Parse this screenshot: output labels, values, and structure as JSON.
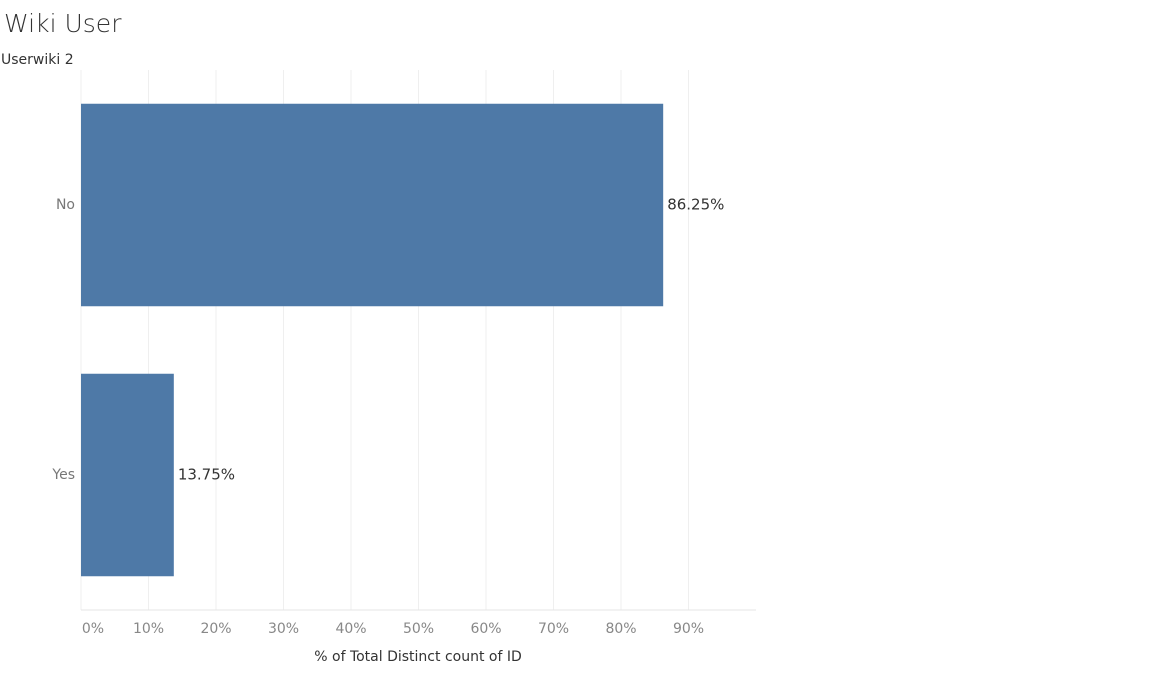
{
  "chart_data": {
    "type": "bar",
    "orientation": "horizontal",
    "title": "Wiki User",
    "row_header": "Userwiki 2",
    "categories": [
      "No",
      "Yes"
    ],
    "values": [
      86.25,
      13.75
    ],
    "value_labels": [
      "86.25%",
      "13.75%"
    ],
    "color": "#4e79a7",
    "x_label": "% of Total Distinct count of ID",
    "xlim": [
      0,
      100
    ],
    "xticks": [
      {
        "value": 0,
        "label": "0%"
      },
      {
        "value": 10,
        "label": "10%"
      },
      {
        "value": 20,
        "label": "20%"
      },
      {
        "value": 30,
        "label": "30%"
      },
      {
        "value": 40,
        "label": "40%"
      },
      {
        "value": 50,
        "label": "50%"
      },
      {
        "value": 60,
        "label": "60%"
      },
      {
        "value": 70,
        "label": "70%"
      },
      {
        "value": 80,
        "label": "80%"
      },
      {
        "value": 90,
        "label": "90%"
      }
    ],
    "grid": true
  }
}
